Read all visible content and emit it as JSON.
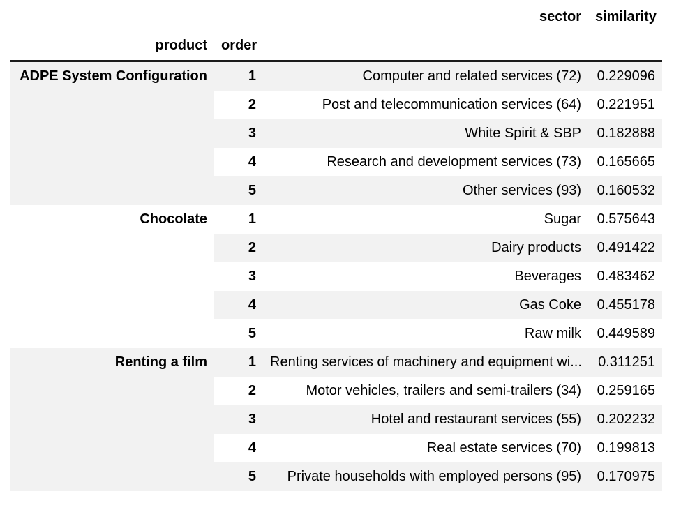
{
  "table": {
    "col_headers": {
      "sector": "sector",
      "similarity": "similarity"
    },
    "index_headers": {
      "product": "product",
      "order": "order"
    },
    "groups": [
      {
        "product": "ADPE System Configuration",
        "rows": [
          {
            "order": "1",
            "sector": "Computer and related services (72)",
            "similarity": "0.229096"
          },
          {
            "order": "2",
            "sector": "Post and telecommunication services (64)",
            "similarity": "0.221951"
          },
          {
            "order": "3",
            "sector": "White Spirit & SBP",
            "similarity": "0.182888"
          },
          {
            "order": "4",
            "sector": "Research and development services (73)",
            "similarity": "0.165665"
          },
          {
            "order": "5",
            "sector": "Other services (93)",
            "similarity": "0.160532"
          }
        ]
      },
      {
        "product": "Chocolate",
        "rows": [
          {
            "order": "1",
            "sector": "Sugar",
            "similarity": "0.575643"
          },
          {
            "order": "2",
            "sector": "Dairy products",
            "similarity": "0.491422"
          },
          {
            "order": "3",
            "sector": "Beverages",
            "similarity": "0.483462"
          },
          {
            "order": "4",
            "sector": "Gas Coke",
            "similarity": "0.455178"
          },
          {
            "order": "5",
            "sector": "Raw milk",
            "similarity": "0.449589"
          }
        ]
      },
      {
        "product": "Renting a film",
        "rows": [
          {
            "order": "1",
            "sector": "Renting services of machinery and equipment wi...",
            "similarity": "0.311251"
          },
          {
            "order": "2",
            "sector": "Motor vehicles, trailers and semi-trailers (34)",
            "similarity": "0.259165"
          },
          {
            "order": "3",
            "sector": "Hotel and restaurant services (55)",
            "similarity": "0.202232"
          },
          {
            "order": "4",
            "sector": "Real estate services (70)",
            "similarity": "0.199813"
          },
          {
            "order": "5",
            "sector": "Private households with employed persons (95)",
            "similarity": "0.170975"
          }
        ]
      }
    ]
  },
  "colors": {
    "stripe_gray": "#f2f2f2",
    "header_border": "#1c1c1c",
    "text": "#000000"
  }
}
